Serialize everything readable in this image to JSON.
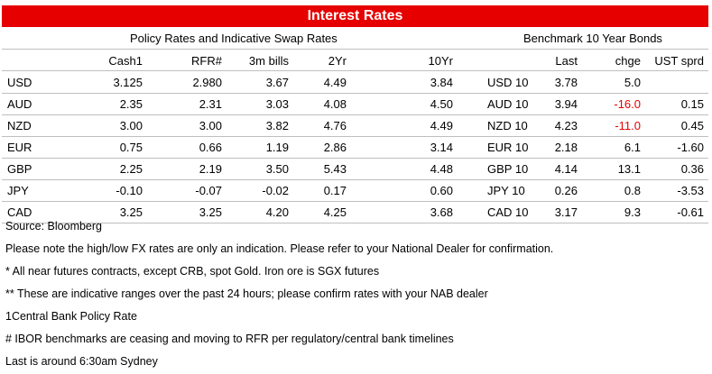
{
  "title": "Interest Rates",
  "groups": {
    "policy": "Policy Rates and Indicative Swap Rates",
    "bench": "Benchmark 10 Year Bonds"
  },
  "headers": {
    "cash": "Cash1",
    "rfr": "RFR#",
    "bills": "3m bills",
    "yr2": "2Yr",
    "yr10": "10Yr",
    "last": "Last",
    "chge": "chge",
    "ust": "UST sprd"
  },
  "rows": [
    {
      "ccy": "USD",
      "cash": "3.125",
      "rfr": "2.980",
      "bills": "3.67",
      "yr2": "4.49",
      "yr10": "3.84",
      "bond": "USD 10",
      "last": "3.78",
      "chge": "5.0",
      "ust": ""
    },
    {
      "ccy": "AUD",
      "cash": "2.35",
      "rfr": "2.31",
      "bills": "3.03",
      "yr2": "4.08",
      "yr10": "4.50",
      "bond": "AUD 10",
      "last": "3.94",
      "chge": "-16.0",
      "ust": "0.15"
    },
    {
      "ccy": "NZD",
      "cash": "3.00",
      "rfr": "3.00",
      "bills": "3.82",
      "yr2": "4.76",
      "yr10": "4.49",
      "bond": "NZD 10",
      "last": "4.23",
      "chge": "-11.0",
      "ust": "0.45"
    },
    {
      "ccy": "EUR",
      "cash": "0.75",
      "rfr": "0.66",
      "bills": "1.19",
      "yr2": "2.86",
      "yr10": "3.14",
      "bond": "EUR 10",
      "last": "2.18",
      "chge": "6.1",
      "ust": "-1.60"
    },
    {
      "ccy": "GBP",
      "cash": "2.25",
      "rfr": "2.19",
      "bills": "3.50",
      "yr2": "5.43",
      "yr10": "4.48",
      "bond": "GBP 10",
      "last": "4.14",
      "chge": "13.1",
      "ust": "0.36"
    },
    {
      "ccy": "JPY",
      "cash": "-0.10",
      "rfr": "-0.07",
      "bills": "-0.02",
      "yr2": "0.17",
      "yr10": "0.60",
      "bond": "JPY 10",
      "last": "0.26",
      "chge": "0.8",
      "ust": "-3.53"
    },
    {
      "ccy": "CAD",
      "cash": "3.25",
      "rfr": "3.25",
      "bills": "4.20",
      "yr2": "4.25",
      "yr10": "3.68",
      "bond": "CAD 10",
      "last": "3.17",
      "chge": "9.3",
      "ust": "-0.61"
    }
  ],
  "notes": [
    "Source: Bloomberg",
    "Please note the high/low FX rates are only an indication. Please refer to your National Dealer for confirmation.",
    "* All near futures contracts, except CRB, spot Gold.  Iron ore is SGX futures",
    "** These are indicative ranges over the past 24 hours; please confirm rates with your NAB dealer",
    "1Central Bank Policy Rate",
    "# IBOR benchmarks are ceasing and moving to RFR per regulatory/central bank timelines",
    "Last is around 6:30am Sydney"
  ],
  "colors": {
    "title_bg": "#e60000",
    "negative_change": "#e60000"
  }
}
